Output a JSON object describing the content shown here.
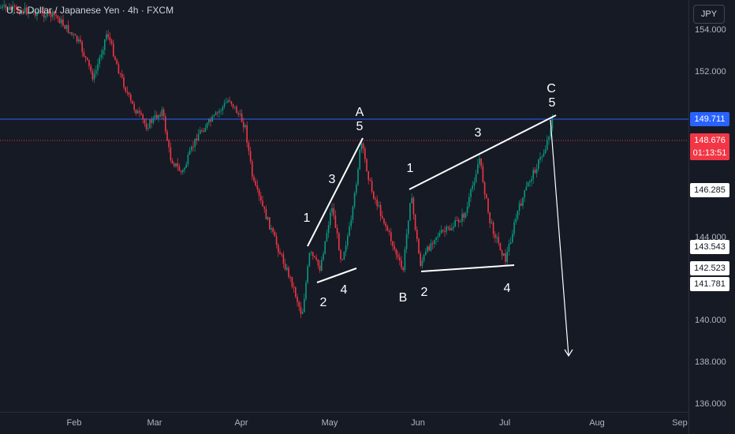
{
  "header": {
    "symbol_title": "U.S. Dollar / Japanese Yen · 4h · FXCM",
    "currency": "JPY"
  },
  "y_axis": {
    "ticks": [
      "154.000",
      "152.000",
      "144.000",
      "140.000",
      "138.000",
      "136.000"
    ]
  },
  "x_axis": {
    "ticks": [
      "Feb",
      "Mar",
      "Apr",
      "May",
      "Jun",
      "Jul",
      "Aug",
      "Sep"
    ]
  },
  "price_labels": {
    "blue_line": "149.711",
    "current_price": "148.676",
    "countdown": "01:13:51",
    "level_146": "146.285",
    "level_143": "143.543",
    "level_142a": "142.523",
    "level_141": "141.781"
  },
  "colors": {
    "background": "#161a25",
    "up": "#089981",
    "down": "#f23645",
    "blue_line": "#2962ff",
    "annotation": "#ffffff"
  },
  "annotations": {
    "wave_A": "A",
    "wave_A5": "5",
    "wave_1a": "1",
    "wave_2a": "2",
    "wave_3a": "3",
    "wave_4a": "4",
    "wave_B": "B",
    "wave_1b": "1",
    "wave_2b": "2",
    "wave_3b": "3",
    "wave_4b": "4",
    "wave_C": "C",
    "wave_C5": "5"
  }
}
